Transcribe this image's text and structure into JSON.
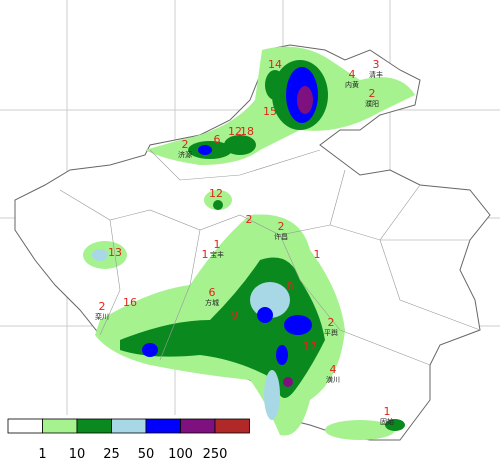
{
  "map": {
    "stations": [
      {
        "value": "14"
      },
      {
        "value": "4",
        "name": "内黄"
      },
      {
        "value": "3",
        "name": "清丰"
      },
      {
        "value": "2",
        "name": "濮阳"
      },
      {
        "value": "15"
      },
      {
        "value": "2",
        "name": "济源"
      },
      {
        "value": "6"
      },
      {
        "value": "12"
      },
      {
        "value": "18"
      },
      {
        "value": "12"
      },
      {
        "value": "2"
      },
      {
        "value": "2",
        "name": "许昌"
      },
      {
        "value": "1",
        "name": "宝丰"
      },
      {
        "value": "1"
      },
      {
        "value": "1"
      },
      {
        "value": "13"
      },
      {
        "value": "2",
        "name": "栾川"
      },
      {
        "value": "16"
      },
      {
        "value": "6",
        "name": "方城"
      },
      {
        "value": "8"
      },
      {
        "value": "2",
        "name": "平舆"
      },
      {
        "value": "9"
      },
      {
        "value": "17"
      },
      {
        "value": "4",
        "name": "潢川"
      },
      {
        "value": "1",
        "name": "固始"
      }
    ],
    "legend": {
      "colors": [
        "#ffffff",
        "#a6f28f",
        "#0a8a1e",
        "#a8d8e6",
        "#0000fe",
        "#7e1080",
        "#b02828"
      ],
      "labels": [
        "1",
        "10",
        "25",
        "50",
        "100",
        "250"
      ]
    }
  }
}
